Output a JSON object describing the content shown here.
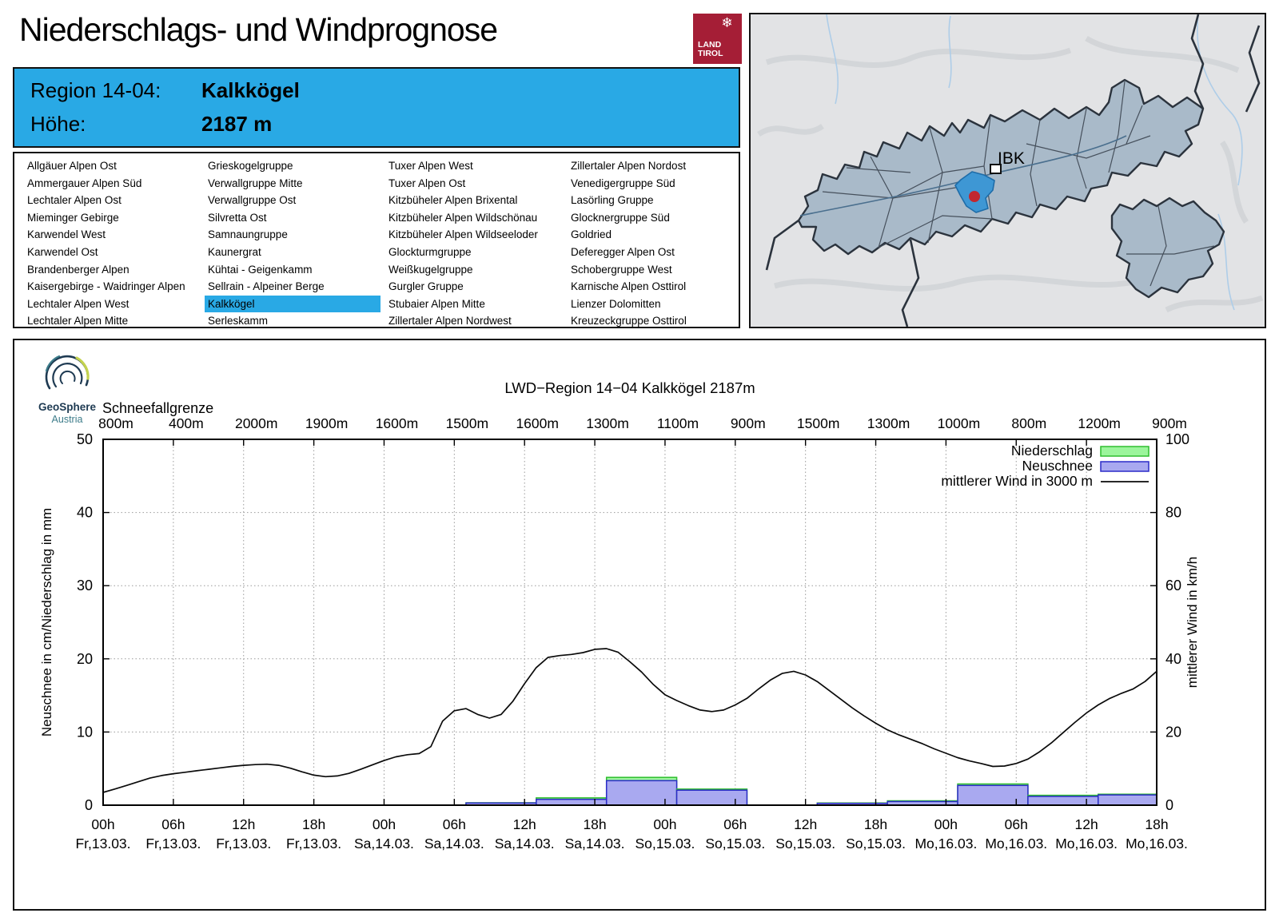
{
  "colors": {
    "accent_blue": "#29A9E5",
    "logo_red": "#A51E36",
    "precip_fill": "#9CF59C",
    "precip_stroke": "#2EBE2E",
    "snow_fill": "#A9A9F0",
    "snow_stroke": "#2B2BC8",
    "wind_stroke": "#0A0A0A",
    "map_region_fill": "#A9BAC9",
    "map_region_stroke": "#39434F",
    "map_border_thick": "#2B333D",
    "map_highlight_fill": "#3E97D4",
    "map_highlight_stroke": "#1E6CA8",
    "map_dot_red": "#C2272F",
    "geosphere_navy": "#1E3A52",
    "geosphere_teal": "#3D7C8A",
    "geosphere_green": "#C3D24E"
  },
  "header": {
    "title": "Niederschlags- und Windprognose",
    "logo": {
      "icon": "❄",
      "line1": "LAND",
      "line2": "TIROL"
    }
  },
  "region_info": {
    "rows": [
      {
        "label": "Region 14-04:",
        "value": "Kalkkögel"
      },
      {
        "label": "Höhe:",
        "value": "2187 m"
      }
    ]
  },
  "region_list": {
    "selected": "Kalkkögel",
    "columns": [
      [
        "Allgäuer Alpen Ost",
        "Ammergauer Alpen Süd",
        "Lechtaler Alpen Ost",
        "Mieminger Gebirge",
        "Karwendel West",
        "Karwendel Ost",
        "Brandenberger Alpen",
        "Kaisergebirge - Waidringer Alpen",
        "Lechtaler Alpen West",
        "Lechtaler Alpen Mitte"
      ],
      [
        "Grieskogelgruppe",
        "Verwallgruppe Mitte",
        "Verwallgruppe Ost",
        "Silvretta Ost",
        "Samnaungruppe",
        "Kaunergrat",
        "Kühtai - Geigenkamm",
        "Sellrain - Alpeiner Berge",
        "Kalkkögel",
        "Serleskamm"
      ],
      [
        "Tuxer Alpen West",
        "Tuxer Alpen Ost",
        "Kitzbüheler Alpen Brixental",
        "Kitzbüheler Alpen Wildschönau",
        "Kitzbüheler Alpen Wildseeloder",
        "Glockturmgruppe",
        "Weißkugelgruppe",
        "Gurgler Gruppe",
        "Stubaier Alpen Mitte",
        "Zillertaler Alpen Nordwest"
      ],
      [
        "Zillertaler Alpen Nordost",
        "Venedigergruppe Süd",
        "Lasörling Gruppe",
        "Glocknergruppe Süd",
        "Goldried",
        "Deferegger Alpen Ost",
        "Schobergruppe West",
        "Karnische Alpen Osttirol",
        "Lienzer Dolomitten",
        "Kreuzeckgruppe Osttirol"
      ]
    ]
  },
  "map": {
    "city_label": "IBK"
  },
  "geosphere": {
    "name": "GeoSphere",
    "country": "Austria"
  },
  "chart_data": {
    "type": "bar",
    "title": "LWD−Region 14−04 Kalkkögel 2187m",
    "snowline_label": "Schneefallgrenze",
    "snowline_values": [
      "800m",
      "400m",
      "2000m",
      "1900m",
      "1600m",
      "1500m",
      "1600m",
      "1300m",
      "1100m",
      "900m",
      "1500m",
      "1300m",
      "1000m",
      "800m",
      "1200m",
      "900m"
    ],
    "x_hours_range": [
      0,
      90
    ],
    "x_ticks": [
      {
        "hour": 0,
        "time": "00h",
        "date": "Fr,13.03."
      },
      {
        "hour": 6,
        "time": "06h",
        "date": "Fr,13.03."
      },
      {
        "hour": 12,
        "time": "12h",
        "date": "Fr,13.03."
      },
      {
        "hour": 18,
        "time": "18h",
        "date": "Fr,13.03."
      },
      {
        "hour": 24,
        "time": "00h",
        "date": "Sa,14.03."
      },
      {
        "hour": 30,
        "time": "06h",
        "date": "Sa,14.03."
      },
      {
        "hour": 36,
        "time": "12h",
        "date": "Sa,14.03."
      },
      {
        "hour": 42,
        "time": "18h",
        "date": "Sa,14.03."
      },
      {
        "hour": 48,
        "time": "00h",
        "date": "So,15.03."
      },
      {
        "hour": 54,
        "time": "06h",
        "date": "So,15.03."
      },
      {
        "hour": 60,
        "time": "12h",
        "date": "So,15.03."
      },
      {
        "hour": 66,
        "time": "18h",
        "date": "So,15.03."
      },
      {
        "hour": 72,
        "time": "00h",
        "date": "Mo,16.03."
      },
      {
        "hour": 78,
        "time": "06h",
        "date": "Mo,16.03."
      },
      {
        "hour": 84,
        "time": "12h",
        "date": "Mo,16.03."
      },
      {
        "hour": 90,
        "time": "18h",
        "date": "Mo,16.03."
      }
    ],
    "left_axis": {
      "label": "Neuschnee in cm/Niederschlag in mm",
      "min": 0,
      "max": 50,
      "ticks": [
        0,
        10,
        20,
        30,
        40,
        50
      ]
    },
    "right_axis": {
      "label": "mittlerer Wind in km/h",
      "min": 0,
      "max": 100,
      "ticks": [
        0,
        20,
        40,
        60,
        80,
        100
      ]
    },
    "legend": [
      {
        "label": "Niederschlag",
        "type": "box",
        "series": "precip"
      },
      {
        "label": "Neuschnee",
        "type": "box",
        "series": "snow"
      },
      {
        "label": "mittlerer Wind in 3000 m",
        "type": "line",
        "series": "wind"
      }
    ],
    "bars": [
      {
        "start_hour": 31,
        "end_hour": 37,
        "precip_mm": 0.33,
        "snow_cm": 0.3
      },
      {
        "start_hour": 37,
        "end_hour": 43,
        "precip_mm": 1.0,
        "snow_cm": 0.8
      },
      {
        "start_hour": 43,
        "end_hour": 49,
        "precip_mm": 3.8,
        "snow_cm": 3.35
      },
      {
        "start_hour": 49,
        "end_hour": 55,
        "precip_mm": 2.2,
        "snow_cm": 2.05
      },
      {
        "start_hour": 61,
        "end_hour": 67,
        "precip_mm": 0.3,
        "snow_cm": 0.25
      },
      {
        "start_hour": 67,
        "end_hour": 73,
        "precip_mm": 0.6,
        "snow_cm": 0.5
      },
      {
        "start_hour": 73,
        "end_hour": 79,
        "precip_mm": 2.9,
        "snow_cm": 2.7
      },
      {
        "start_hour": 79,
        "end_hour": 85,
        "precip_mm": 1.35,
        "snow_cm": 1.2
      },
      {
        "start_hour": 85,
        "end_hour": 90,
        "precip_mm": 1.5,
        "snow_cm": 1.4
      }
    ],
    "wind_series_note": "values in left-axis units (cm/mm scale); km/h = value × 2",
    "wind_line_left_units": [
      [
        0,
        1.75
      ],
      [
        1,
        2.2
      ],
      [
        2,
        2.7
      ],
      [
        3,
        3.2
      ],
      [
        4,
        3.7
      ],
      [
        5,
        4.05
      ],
      [
        6,
        4.3
      ],
      [
        7,
        4.5
      ],
      [
        8,
        4.7
      ],
      [
        9,
        4.9
      ],
      [
        10,
        5.1
      ],
      [
        11,
        5.3
      ],
      [
        12,
        5.45
      ],
      [
        13,
        5.55
      ],
      [
        14,
        5.6
      ],
      [
        15,
        5.45
      ],
      [
        16,
        5.05
      ],
      [
        17,
        4.55
      ],
      [
        18,
        4.1
      ],
      [
        19,
        3.9
      ],
      [
        20,
        4.0
      ],
      [
        21,
        4.35
      ],
      [
        22,
        4.9
      ],
      [
        23,
        5.5
      ],
      [
        24,
        6.1
      ],
      [
        25,
        6.6
      ],
      [
        26,
        6.9
      ],
      [
        27,
        7.05
      ],
      [
        28,
        8.0
      ],
      [
        29,
        11.5
      ],
      [
        30,
        12.9
      ],
      [
        31,
        13.2
      ],
      [
        32,
        12.4
      ],
      [
        33,
        11.9
      ],
      [
        34,
        12.4
      ],
      [
        35,
        14.2
      ],
      [
        36,
        16.6
      ],
      [
        37,
        18.8
      ],
      [
        38,
        20.2
      ],
      [
        39,
        20.45
      ],
      [
        40,
        20.6
      ],
      [
        41,
        20.85
      ],
      [
        42,
        21.3
      ],
      [
        43,
        21.4
      ],
      [
        44,
        20.9
      ],
      [
        45,
        19.6
      ],
      [
        46,
        18.2
      ],
      [
        47,
        16.5
      ],
      [
        48,
        15.1
      ],
      [
        49,
        14.3
      ],
      [
        50,
        13.6
      ],
      [
        51,
        13.0
      ],
      [
        52,
        12.8
      ],
      [
        53,
        13.0
      ],
      [
        54,
        13.7
      ],
      [
        55,
        14.6
      ],
      [
        56,
        15.9
      ],
      [
        57,
        17.1
      ],
      [
        58,
        18.0
      ],
      [
        59,
        18.3
      ],
      [
        60,
        17.8
      ],
      [
        61,
        16.9
      ],
      [
        62,
        15.7
      ],
      [
        63,
        14.5
      ],
      [
        64,
        13.3
      ],
      [
        65,
        12.2
      ],
      [
        66,
        11.2
      ],
      [
        67,
        10.3
      ],
      [
        68,
        9.6
      ],
      [
        69,
        9.0
      ],
      [
        70,
        8.4
      ],
      [
        71,
        7.7
      ],
      [
        72,
        7.1
      ],
      [
        73,
        6.5
      ],
      [
        74,
        6.05
      ],
      [
        75,
        5.7
      ],
      [
        76,
        5.3
      ],
      [
        77,
        5.35
      ],
      [
        78,
        5.7
      ],
      [
        79,
        6.3
      ],
      [
        80,
        7.3
      ],
      [
        81,
        8.5
      ],
      [
        82,
        9.9
      ],
      [
        83,
        11.3
      ],
      [
        84,
        12.6
      ],
      [
        85,
        13.7
      ],
      [
        86,
        14.6
      ],
      [
        87,
        15.3
      ],
      [
        88,
        15.9
      ],
      [
        89,
        16.9
      ],
      [
        90,
        18.3
      ]
    ]
  }
}
